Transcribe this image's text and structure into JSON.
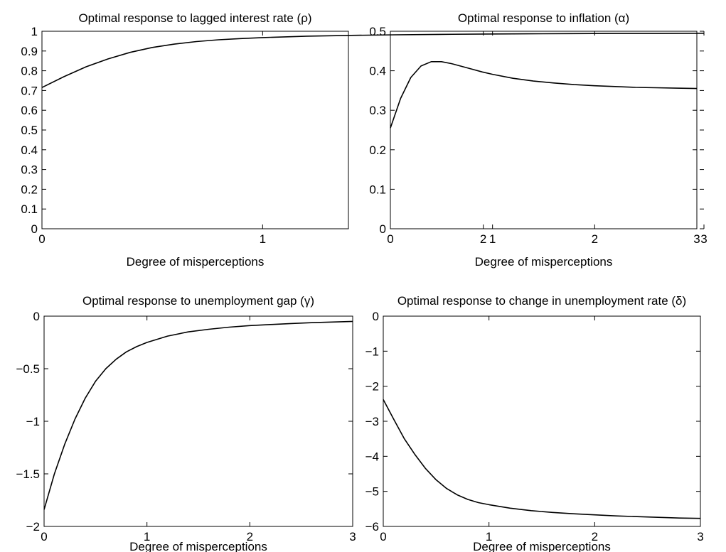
{
  "chart_data": [
    {
      "type": "line",
      "title": "Optimal response to lagged interest rate (ρ)",
      "xlabel": "Degree of misperceptions",
      "ylabel": "",
      "xlim": [
        0,
        3
      ],
      "ylim": [
        0,
        1
      ],
      "xticks": [
        0,
        1,
        2,
        3
      ],
      "xtick_labels": [
        "0",
        "1",
        "2",
        "3"
      ],
      "yticks": [
        0,
        0.1,
        0.2,
        0.3,
        0.4,
        0.5,
        0.6,
        0.7,
        0.8,
        0.9,
        1
      ],
      "ytick_labels": [
        "0",
        "0.1",
        "0.2",
        "0.3",
        "0.4",
        "0.5",
        "0.6",
        "0.7",
        "0.8",
        "0.9",
        "1"
      ],
      "grid": false,
      "series": [
        {
          "x": [
            0,
            0.1,
            0.2,
            0.3,
            0.4,
            0.5,
            0.6,
            0.7,
            0.8,
            0.9,
            1.0,
            1.2,
            1.4,
            1.6,
            1.8,
            2.0,
            2.2,
            2.4,
            2.6,
            2.8,
            3.0
          ],
          "y": [
            0.715,
            0.77,
            0.82,
            0.86,
            0.893,
            0.918,
            0.935,
            0.948,
            0.957,
            0.963,
            0.968,
            0.975,
            0.979,
            0.982,
            0.984,
            0.986,
            0.987,
            0.988,
            0.989,
            0.989,
            0.99
          ]
        }
      ]
    },
    {
      "type": "line",
      "title": "Optimal response to inflation (α)",
      "xlabel": "Degree of misperceptions",
      "ylabel": "",
      "xlim": [
        0,
        3
      ],
      "ylim": [
        0,
        0.5
      ],
      "xticks": [
        0,
        1,
        2,
        3
      ],
      "xtick_labels": [
        "0",
        "1",
        "2",
        "3"
      ],
      "yticks": [
        0,
        0.1,
        0.2,
        0.3,
        0.4,
        0.5
      ],
      "ytick_labels": [
        "0",
        "0.1",
        "0.2",
        "0.3",
        "0.4",
        "0.5"
      ],
      "grid": false,
      "series": [
        {
          "x": [
            0,
            0.1,
            0.2,
            0.3,
            0.4,
            0.5,
            0.6,
            0.7,
            0.8,
            0.9,
            1.0,
            1.2,
            1.4,
            1.6,
            1.8,
            2.0,
            2.2,
            2.4,
            2.6,
            2.8,
            3.0
          ],
          "y": [
            0.255,
            0.33,
            0.383,
            0.412,
            0.423,
            0.423,
            0.418,
            0.411,
            0.404,
            0.397,
            0.391,
            0.381,
            0.374,
            0.369,
            0.365,
            0.362,
            0.36,
            0.358,
            0.357,
            0.356,
            0.355
          ]
        }
      ]
    },
    {
      "type": "line",
      "title": "Optimal response to unemployment gap (γ)",
      "xlabel": "Degree of misperceptions",
      "ylabel": "",
      "xlim": [
        0,
        3
      ],
      "ylim": [
        -2,
        0
      ],
      "xticks": [
        0,
        1,
        2,
        3
      ],
      "xtick_labels": [
        "0",
        "1",
        "2",
        "3"
      ],
      "yticks": [
        -2,
        -1.5,
        -1,
        -0.5,
        0
      ],
      "ytick_labels": [
        "−2",
        "−1.5",
        "−1",
        "−0.5",
        "0"
      ],
      "grid": false,
      "series": [
        {
          "x": [
            0,
            0.1,
            0.2,
            0.3,
            0.4,
            0.5,
            0.6,
            0.7,
            0.8,
            0.9,
            1.0,
            1.2,
            1.4,
            1.6,
            1.8,
            2.0,
            2.2,
            2.4,
            2.6,
            2.8,
            3.0
          ],
          "y": [
            -1.84,
            -1.5,
            -1.22,
            -0.98,
            -0.78,
            -0.62,
            -0.5,
            -0.41,
            -0.34,
            -0.29,
            -0.25,
            -0.19,
            -0.15,
            -0.125,
            -0.105,
            -0.09,
            -0.08,
            -0.07,
            -0.062,
            -0.056,
            -0.05
          ]
        }
      ]
    },
    {
      "type": "line",
      "title": "Optimal response to change in unemployment rate (δ)",
      "xlabel": "Degree of misperceptions",
      "ylabel": "",
      "xlim": [
        0,
        3
      ],
      "ylim": [
        -6,
        0
      ],
      "xticks": [
        0,
        1,
        2,
        3
      ],
      "xtick_labels": [
        "0",
        "1",
        "2",
        "3"
      ],
      "yticks": [
        -6,
        -5,
        -4,
        -3,
        -2,
        -1,
        0
      ],
      "ytick_labels": [
        "−6",
        "−5",
        "−4",
        "−3",
        "−2",
        "−1",
        "0"
      ],
      "grid": false,
      "series": [
        {
          "x": [
            0,
            0.1,
            0.2,
            0.3,
            0.4,
            0.5,
            0.6,
            0.7,
            0.8,
            0.9,
            1.0,
            1.2,
            1.4,
            1.6,
            1.8,
            2.0,
            2.2,
            2.4,
            2.6,
            2.8,
            3.0
          ],
          "y": [
            -2.38,
            -2.95,
            -3.5,
            -3.95,
            -4.35,
            -4.67,
            -4.92,
            -5.1,
            -5.23,
            -5.32,
            -5.38,
            -5.48,
            -5.55,
            -5.6,
            -5.64,
            -5.67,
            -5.7,
            -5.72,
            -5.74,
            -5.76,
            -5.77
          ]
        }
      ]
    }
  ]
}
